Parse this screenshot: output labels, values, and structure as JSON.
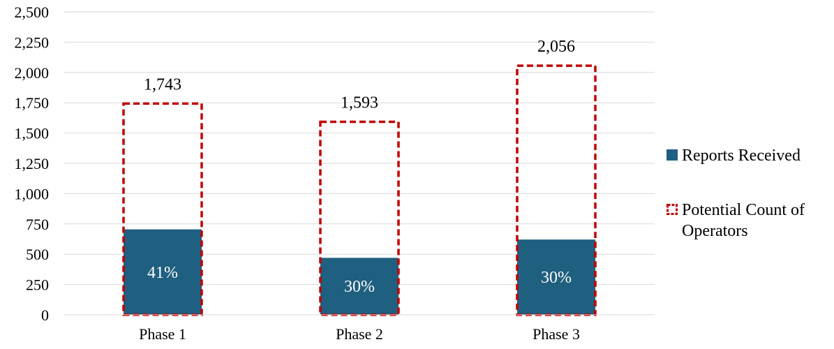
{
  "chart_data": {
    "type": "bar",
    "categories": [
      "Phase 1",
      "Phase 2",
      "Phase 3"
    ],
    "series": [
      {
        "name": "Reports Received",
        "values": [
          705,
          470,
          621
        ],
        "labels": [
          "41%",
          "30%",
          "30%"
        ],
        "color": "#1f5f7f",
        "style": "filled"
      },
      {
        "name": "Potential Count of Operators",
        "values": [
          1743,
          1593,
          2056
        ],
        "labels": [
          "1,743",
          "1,593",
          "2,056"
        ],
        "color": "#c00000",
        "style": "dashed-outline"
      }
    ],
    "y_ticks": [
      "0",
      "250",
      "500",
      "750",
      "1,000",
      "1,250",
      "1,500",
      "1,750",
      "2,000",
      "2,250",
      "2,500"
    ],
    "ylim": [
      0,
      2500
    ],
    "grid": true,
    "legend_position": "right",
    "legend": [
      {
        "series": 0,
        "lines": [
          "Reports Received"
        ]
      },
      {
        "series": 1,
        "lines": [
          "Potential Count of",
          "Operators"
        ]
      }
    ]
  }
}
